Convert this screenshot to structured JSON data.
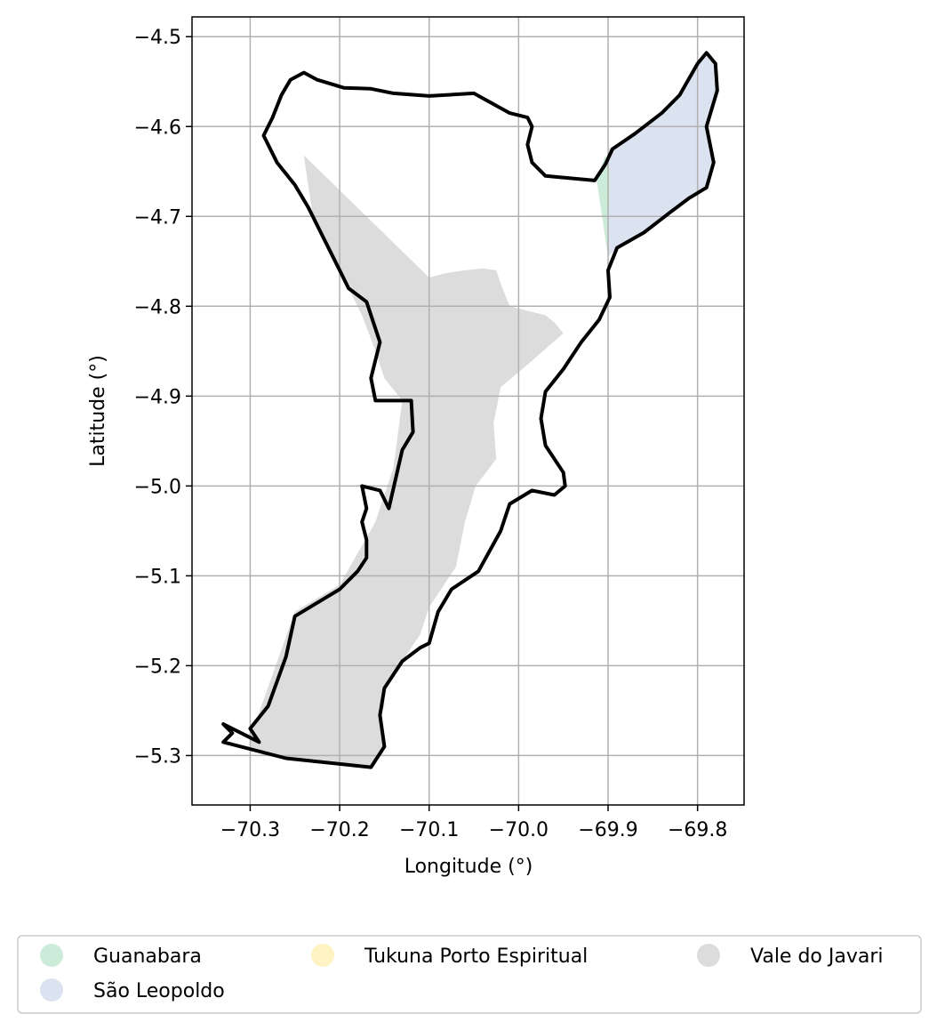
{
  "chart_data": {
    "type": "map",
    "xlabel": "Longitude (°)",
    "ylabel": "Latitude (°)",
    "xlim": [
      -70.365,
      -69.748
    ],
    "ylim": [
      -5.355,
      -4.478
    ],
    "xticks": [
      -70.3,
      -70.2,
      -70.1,
      -70.0,
      -69.9,
      -69.8
    ],
    "xtick_labels": [
      "−70.3",
      "−70.2",
      "−70.1",
      "−70.0",
      "−69.9",
      "−69.8"
    ],
    "yticks": [
      -4.5,
      -4.6,
      -4.7,
      -4.8,
      -4.9,
      -5.0,
      -5.1,
      -5.2,
      -5.3
    ],
    "ytick_labels": [
      "−4.5",
      "−4.6",
      "−4.7",
      "−4.8",
      "−4.9",
      "−5.0",
      "−5.1",
      "−5.2",
      "−5.3"
    ],
    "grid": true,
    "legend": {
      "placement": "bottom",
      "columns": 3,
      "entries": [
        {
          "label": "Guanabara",
          "color": "#ccebd9"
        },
        {
          "label": "São Leopoldo",
          "color": "#dce3f0"
        },
        {
          "label": "Tukuna Porto Espiritual",
          "color": "#fff3c4"
        },
        {
          "label": "Vale do Javari",
          "color": "#dcdcdc"
        }
      ]
    },
    "regions": [
      {
        "name": "Vale do Javari",
        "color": "#dcdcdc",
        "coords": [
          [
            -70.24,
            -4.632
          ],
          [
            -70.1,
            -4.768
          ],
          [
            -70.08,
            -4.763
          ],
          [
            -70.06,
            -4.76
          ],
          [
            -70.04,
            -4.758
          ],
          [
            -70.025,
            -4.76
          ],
          [
            -70.02,
            -4.775
          ],
          [
            -70.01,
            -4.8
          ],
          [
            -69.99,
            -4.805
          ],
          [
            -69.97,
            -4.81
          ],
          [
            -69.96,
            -4.818
          ],
          [
            -69.95,
            -4.83
          ],
          [
            -69.99,
            -4.865
          ],
          [
            -70.02,
            -4.89
          ],
          [
            -70.028,
            -4.93
          ],
          [
            -70.025,
            -4.97
          ],
          [
            -70.048,
            -5.0
          ],
          [
            -70.06,
            -5.04
          ],
          [
            -70.07,
            -5.09
          ],
          [
            -70.1,
            -5.135
          ],
          [
            -70.11,
            -5.165
          ],
          [
            -70.13,
            -5.195
          ],
          [
            -70.15,
            -5.225
          ],
          [
            -70.15,
            -5.245
          ],
          [
            -70.155,
            -5.255
          ],
          [
            -70.15,
            -5.29
          ],
          [
            -70.165,
            -5.313
          ],
          [
            -70.26,
            -5.303
          ],
          [
            -70.285,
            -5.3
          ],
          [
            -70.3,
            -5.29
          ],
          [
            -70.3,
            -5.28
          ],
          [
            -70.25,
            -5.14
          ],
          [
            -70.2,
            -5.11
          ],
          [
            -70.16,
            -5.04
          ],
          [
            -70.14,
            -4.98
          ],
          [
            -70.13,
            -4.905
          ],
          [
            -70.15,
            -4.88
          ],
          [
            -70.16,
            -4.85
          ],
          [
            -70.175,
            -4.81
          ],
          [
            -70.21,
            -4.74
          ],
          [
            -70.23,
            -4.7
          ]
        ]
      },
      {
        "name": "São Leopoldo",
        "color": "#dce3f0",
        "coords": [
          [
            -69.9,
            -4.625
          ],
          [
            -69.87,
            -4.608
          ],
          [
            -69.84,
            -4.585
          ],
          [
            -69.82,
            -4.565
          ],
          [
            -69.8,
            -4.53
          ],
          [
            -69.79,
            -4.518
          ],
          [
            -69.78,
            -4.53
          ],
          [
            -69.778,
            -4.56
          ],
          [
            -69.79,
            -4.6
          ],
          [
            -69.782,
            -4.64
          ],
          [
            -69.79,
            -4.668
          ],
          [
            -69.81,
            -4.68
          ],
          [
            -69.83,
            -4.695
          ],
          [
            -69.86,
            -4.718
          ],
          [
            -69.89,
            -4.735
          ],
          [
            -69.9,
            -4.745
          ],
          [
            -69.908,
            -4.69
          ]
        ]
      },
      {
        "name": "Guanabara",
        "color": "#ccebd9",
        "coords": [
          [
            -69.913,
            -4.658
          ],
          [
            -69.903,
            -4.632
          ],
          [
            -69.898,
            -4.65
          ],
          [
            -69.9,
            -4.745
          ]
        ]
      }
    ],
    "outline": [
      [
        -70.24,
        -4.54
      ],
      [
        -70.225,
        -4.548
      ],
      [
        -70.195,
        -4.557
      ],
      [
        -70.165,
        -4.558
      ],
      [
        -70.14,
        -4.563
      ],
      [
        -70.1,
        -4.566
      ],
      [
        -70.05,
        -4.563
      ],
      [
        -70.01,
        -4.585
      ],
      [
        -69.99,
        -4.59
      ],
      [
        -69.985,
        -4.6
      ],
      [
        -69.99,
        -4.62
      ],
      [
        -69.985,
        -4.64
      ],
      [
        -69.97,
        -4.655
      ],
      [
        -69.915,
        -4.66
      ],
      [
        -69.903,
        -4.642
      ],
      [
        -69.895,
        -4.625
      ],
      [
        -69.87,
        -4.608
      ],
      [
        -69.84,
        -4.585
      ],
      [
        -69.82,
        -4.565
      ],
      [
        -69.8,
        -4.53
      ],
      [
        -69.79,
        -4.518
      ],
      [
        -69.78,
        -4.53
      ],
      [
        -69.778,
        -4.56
      ],
      [
        -69.79,
        -4.6
      ],
      [
        -69.782,
        -4.64
      ],
      [
        -69.79,
        -4.668
      ],
      [
        -69.81,
        -4.68
      ],
      [
        -69.83,
        -4.695
      ],
      [
        -69.86,
        -4.718
      ],
      [
        -69.89,
        -4.735
      ],
      [
        -69.9,
        -4.76
      ],
      [
        -69.898,
        -4.79
      ],
      [
        -69.91,
        -4.815
      ],
      [
        -69.93,
        -4.84
      ],
      [
        -69.95,
        -4.87
      ],
      [
        -69.97,
        -4.895
      ],
      [
        -69.975,
        -4.925
      ],
      [
        -69.97,
        -4.955
      ],
      [
        -69.95,
        -4.985
      ],
      [
        -69.948,
        -5.0
      ],
      [
        -69.96,
        -5.01
      ],
      [
        -69.985,
        -5.005
      ],
      [
        -70.01,
        -5.02
      ],
      [
        -70.02,
        -5.05
      ],
      [
        -70.045,
        -5.095
      ],
      [
        -70.075,
        -5.115
      ],
      [
        -70.09,
        -5.14
      ],
      [
        -70.1,
        -5.175
      ],
      [
        -70.11,
        -5.18
      ],
      [
        -70.13,
        -5.195
      ],
      [
        -70.15,
        -5.225
      ],
      [
        -70.155,
        -5.255
      ],
      [
        -70.15,
        -5.29
      ],
      [
        -70.165,
        -5.313
      ],
      [
        -70.26,
        -5.303
      ],
      [
        -70.33,
        -5.285
      ],
      [
        -70.32,
        -5.275
      ],
      [
        -70.33,
        -5.265
      ],
      [
        -70.29,
        -5.285
      ],
      [
        -70.3,
        -5.27
      ],
      [
        -70.28,
        -5.245
      ],
      [
        -70.26,
        -5.19
      ],
      [
        -70.25,
        -5.145
      ],
      [
        -70.2,
        -5.115
      ],
      [
        -70.18,
        -5.095
      ],
      [
        -70.17,
        -5.08
      ],
      [
        -70.17,
        -5.06
      ],
      [
        -70.175,
        -5.04
      ],
      [
        -70.17,
        -5.025
      ],
      [
        -70.175,
        -5.0
      ],
      [
        -70.155,
        -5.005
      ],
      [
        -70.145,
        -5.025
      ],
      [
        -70.13,
        -4.96
      ],
      [
        -70.118,
        -4.94
      ],
      [
        -70.12,
        -4.905
      ],
      [
        -70.16,
        -4.905
      ],
      [
        -70.165,
        -4.88
      ],
      [
        -70.16,
        -4.86
      ],
      [
        -70.155,
        -4.84
      ],
      [
        -70.165,
        -4.81
      ],
      [
        -70.17,
        -4.795
      ],
      [
        -70.19,
        -4.78
      ],
      [
        -70.2,
        -4.76
      ],
      [
        -70.21,
        -4.74
      ],
      [
        -70.22,
        -4.72
      ],
      [
        -70.235,
        -4.69
      ],
      [
        -70.25,
        -4.665
      ],
      [
        -70.27,
        -4.64
      ],
      [
        -70.285,
        -4.61
      ],
      [
        -70.275,
        -4.59
      ],
      [
        -70.265,
        -4.565
      ],
      [
        -70.255,
        -4.548
      ]
    ]
  }
}
